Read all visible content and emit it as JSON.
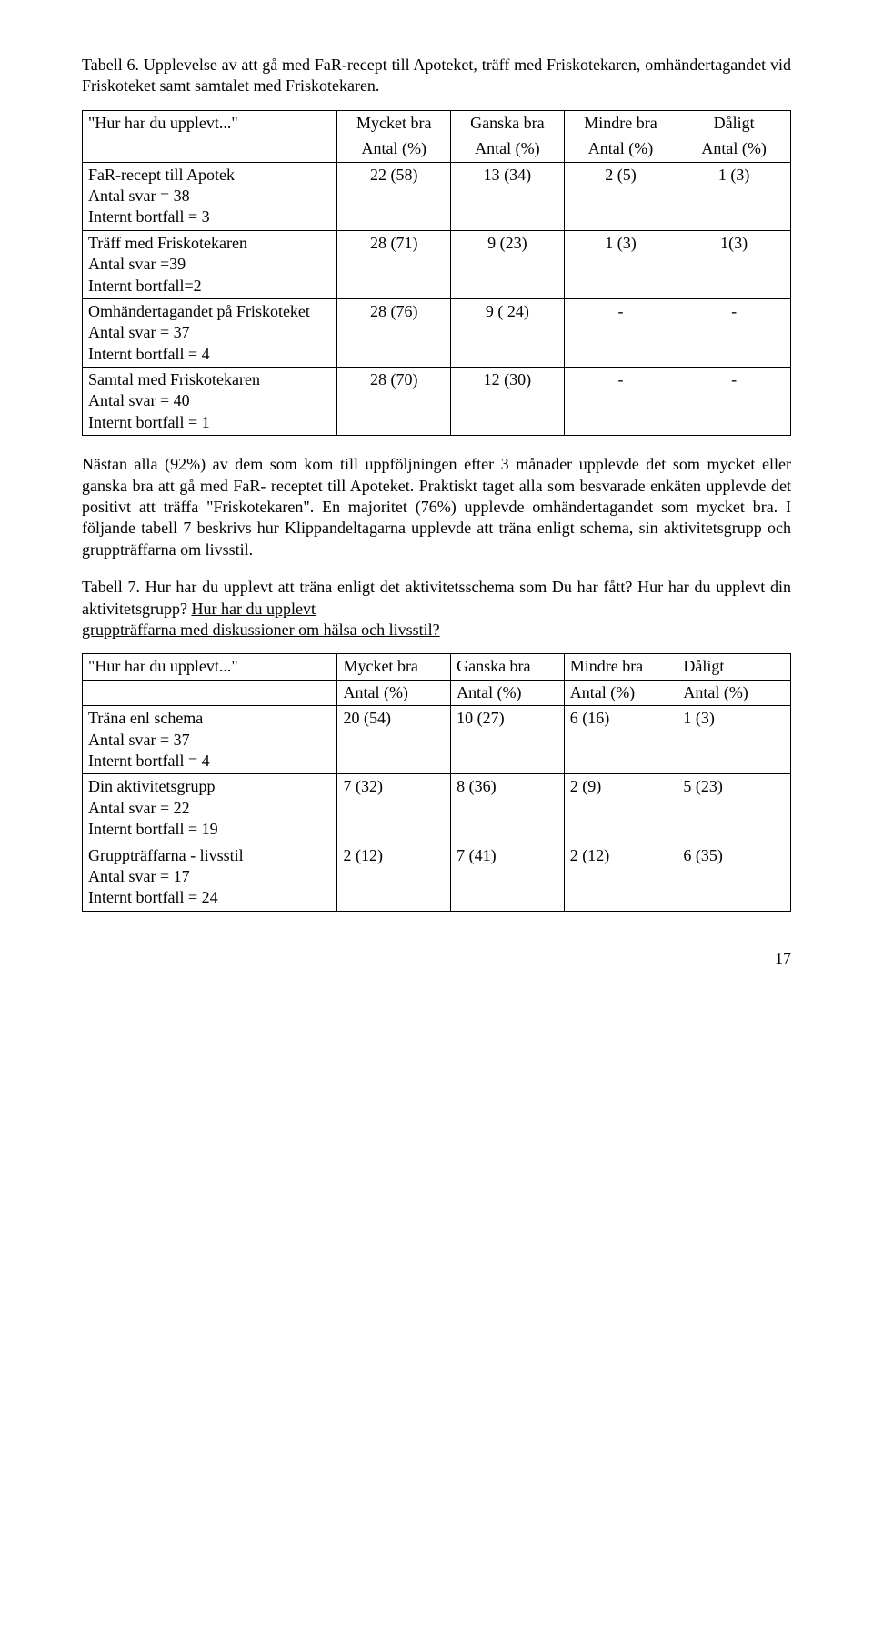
{
  "table6": {
    "caption": "Tabell 6. Upplevelse av att gå med FaR-recept till Apoteket, träff med Friskotekaren, omhändertagandet vid Friskoteket samt samtalet med Friskotekaren.",
    "header_row1": [
      "\"Hur har du upplevt...\"",
      "Mycket bra",
      "Ganska bra",
      "Mindre bra",
      "Dåligt"
    ],
    "header_row2": [
      "",
      "Antal (%)",
      "Antal (%)",
      "Antal (%)",
      "Antal (%)"
    ],
    "rows": [
      {
        "label": "FaR-recept till Apotek\nAntal svar = 38\nInternt bortfall = 3",
        "c1": "22 (58)",
        "c2": "13 (34)",
        "c3": "2 (5)",
        "c4": "1 (3)"
      },
      {
        "label": "Träff med Friskotekaren\nAntal svar =39\nInternt bortfall=2",
        "c1": "28 (71)",
        "c2": "9 (23)",
        "c3": "1 (3)",
        "c4": "1(3)"
      },
      {
        "label": "Omhändertagandet på Friskoteket\nAntal svar = 37\nInternt bortfall = 4",
        "c1": "28 (76)",
        "c2": "9 ( 24)",
        "c3": "-",
        "c4": "-"
      },
      {
        "label": "Samtal med Friskotekaren\nAntal svar = 40\nInternt bortfall = 1",
        "c1": "28 (70)",
        "c2": "12 (30)",
        "c3": "-",
        "c4": "-"
      }
    ]
  },
  "paragraph": "Nästan alla (92%) av dem som kom till uppföljningen efter 3 månader upplevde det som mycket eller ganska bra att gå med FaR- receptet till Apoteket. Praktiskt taget alla som besvarade enkäten upplevde det positivt att träffa \"Friskotekaren\". En majoritet (76%) upplevde omhändertagandet som mycket bra. I följande tabell 7 beskrivs hur Klippandeltagarna upplevde att träna enligt schema, sin aktivitetsgrupp och gruppträffarna om livsstil.",
  "table7": {
    "caption_prefix": "Tabell 7. Hur har du upplevt att träna enligt det aktivitetsschema som Du har fått? Hur har du upplevt din aktivitetsgrupp? ",
    "caption_underlined": "Hur har du upplevt\ngruppträffarna med diskussioner om hälsa och livsstil?",
    "header_row1": [
      "\"Hur har du upplevt...\"",
      "Mycket bra",
      "Ganska bra",
      "Mindre bra",
      "Dåligt"
    ],
    "header_row2": [
      "",
      "Antal (%)",
      "Antal (%)",
      "Antal (%)",
      "Antal (%)"
    ],
    "rows": [
      {
        "label": "Träna enl schema\nAntal svar = 37\nInternt bortfall = 4",
        "c1": "20 (54)",
        "c2": "10 (27)",
        "c3": "6 (16)",
        "c4": "1 (3)"
      },
      {
        "label": "Din aktivitetsgrupp\nAntal svar = 22\nInternt bortfall = 19",
        "c1": "7 (32)",
        "c2": "8 (36)",
        "c3": "2 (9)",
        "c4": "5 (23)"
      },
      {
        "label": "Gruppträffarna - livsstil\nAntal svar = 17\nInternt bortfall = 24",
        "c1": "2 (12)",
        "c2": "7 (41)",
        "c3": "2 (12)",
        "c4": "6 (35)"
      }
    ]
  },
  "page_number": "17"
}
